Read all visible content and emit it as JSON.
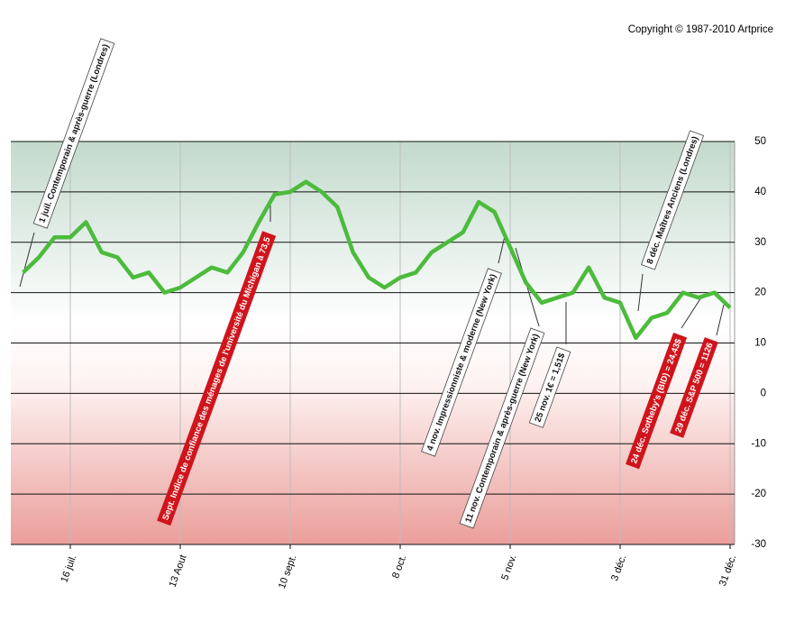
{
  "chart_data": {
    "type": "line",
    "copyright": "Copyright © 1987-2010 Artprice",
    "categories": [
      null,
      null,
      null,
      "16 juil.",
      null,
      null,
      null,
      null,
      null,
      null,
      "13 Aout",
      null,
      null,
      null,
      null,
      null,
      null,
      "10 sept.",
      null,
      null,
      null,
      null,
      null,
      null,
      "8 oct.",
      null,
      null,
      null,
      null,
      null,
      null,
      "5 nov.",
      null,
      null,
      null,
      null,
      null,
      null,
      "3 déc.",
      null,
      null,
      null,
      null,
      null,
      null,
      "31 déc."
    ],
    "series": [
      {
        "color": "#4cbb3c",
        "values": [
          24,
          27,
          31,
          31,
          34,
          28,
          27,
          23,
          24,
          20,
          21,
          23,
          25,
          24,
          28,
          34,
          39.5,
          40,
          42,
          40,
          37,
          28,
          23,
          21,
          23,
          24,
          28,
          30,
          32,
          38,
          36,
          29,
          22,
          18,
          19,
          20,
          25,
          19,
          18,
          11,
          15,
          16,
          20,
          19,
          20,
          17
        ]
      }
    ],
    "ylim": [
      -30,
      50
    ],
    "yticks": [
      50,
      40,
      30,
      20,
      10,
      0,
      -10,
      -20,
      -30
    ],
    "grid": true,
    "annotations": [
      {
        "text": "1 juil. Contemporain & après-guerre (Londres)",
        "color": "#ffffff"
      },
      {
        "text": "Sept. Indice de confiance des ménages de l'université du Michigan à 73,5",
        "color": "#d0141c"
      },
      {
        "text": "4 nov. Impressionniste & moderne (New York)",
        "color": "#ffffff"
      },
      {
        "text": "11 nov. Contemporain & après-guerre (New York)",
        "color": "#ffffff"
      },
      {
        "text": "25 nov. 1€ = 1,51$",
        "color": "#ffffff"
      },
      {
        "text": "8 déc. Maîtres Anciens (Londres)",
        "color": "#ffffff"
      },
      {
        "text": "24 déc. Sotheby's (BID) = 24,43$",
        "color": "#d0141c"
      },
      {
        "text": "29 déc. S&P 500 = 1126",
        "color": "#d0141c"
      }
    ]
  }
}
